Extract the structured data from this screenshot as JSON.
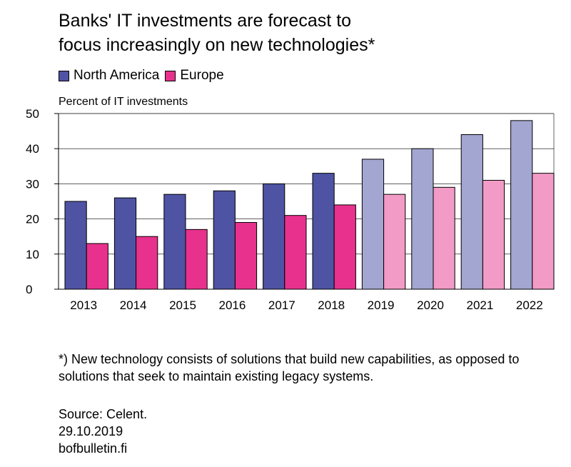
{
  "chart_data": {
    "type": "bar",
    "title": [
      "Banks' IT investments are forecast to",
      "focus increasingly on new technologies*"
    ],
    "ylabel": "Percent of IT investments",
    "xlabel": "",
    "ylim": [
      0,
      50
    ],
    "yticks": [
      0,
      10,
      20,
      30,
      40,
      50
    ],
    "grid": true,
    "legend_position": "top-left",
    "categories": [
      "2013",
      "2014",
      "2015",
      "2016",
      "2017",
      "2018",
      "2019",
      "2020",
      "2021",
      "2022"
    ],
    "forecast_from": "2019",
    "series": [
      {
        "name": "North America",
        "color": "#4f53a3",
        "forecast_color": "#a3a6d1",
        "values": [
          25,
          26,
          27,
          28,
          30,
          33,
          37,
          40,
          44,
          48
        ]
      },
      {
        "name": "Europe",
        "color": "#e8318d",
        "forecast_color": "#f29bc6",
        "values": [
          13,
          15,
          17,
          19,
          21,
          24,
          27,
          29,
          31,
          33
        ]
      }
    ]
  },
  "footnote": "*) New technology consists of solutions that build new capabilities, as opposed to solutions that seek to maintain existing legacy systems.",
  "source": {
    "label": "Source: Celent.",
    "date": "29.10.2019",
    "site": "bofbulletin.fi"
  }
}
